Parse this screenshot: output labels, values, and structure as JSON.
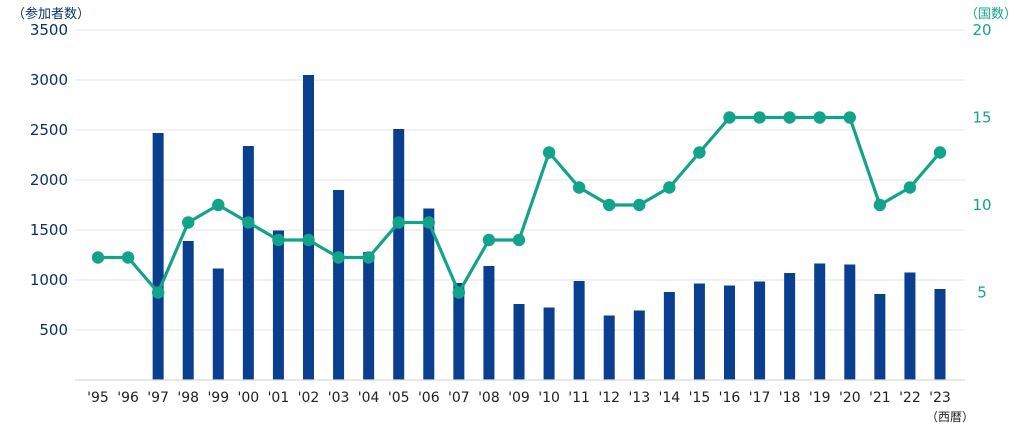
{
  "chart_data": {
    "type": "bar",
    "categories": [
      "'95",
      "'96",
      "'97",
      "'98",
      "'99",
      "'00",
      "'01",
      "'02",
      "'03",
      "'04",
      "'05",
      "'06",
      "'07",
      "'08",
      "'09",
      "'10",
      "'11",
      "'12",
      "'13",
      "'14",
      "'15",
      "'16",
      "'17",
      "'18",
      "'19",
      "'20",
      "'21",
      "'22",
      "'23"
    ],
    "series": [
      {
        "type": "bar",
        "axis": "left",
        "values": [
          null,
          null,
          2470,
          1390,
          1115,
          2340,
          1495,
          3050,
          1900,
          1280,
          2510,
          1715,
          970,
          1140,
          760,
          725,
          990,
          645,
          695,
          880,
          965,
          945,
          985,
          1070,
          1165,
          1155,
          860,
          1075,
          910
        ]
      },
      {
        "type": "line",
        "axis": "right",
        "values": [
          7,
          7,
          5,
          9,
          10,
          9,
          8,
          8,
          7,
          7,
          9,
          9,
          5,
          8,
          8,
          13,
          11,
          10,
          10,
          11,
          13,
          15,
          15,
          15,
          15,
          15,
          10,
          11,
          13
        ]
      }
    ],
    "ylabel": "（参加者数）",
    "y2label": "（国数）",
    "xlabel": "（西暦）",
    "ylim": [
      0,
      3500
    ],
    "y2lim": [
      0,
      20
    ],
    "left_ticks": [
      500,
      1000,
      1500,
      2000,
      2500,
      3000,
      3500
    ],
    "right_ticks": [
      5,
      10,
      15,
      20
    ],
    "grid": true
  },
  "colors": {
    "bar": "#0a3f8f",
    "line": "#12a38b",
    "left_axis_text": "#0b2f6b",
    "right_axis_text": "#12a38b",
    "grid": "#e6e6e6",
    "baseline": "#d9d9d9"
  }
}
